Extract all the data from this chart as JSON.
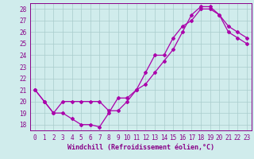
{
  "xlabel": "Windchill (Refroidissement éolien,°C)",
  "xlim": [
    -0.5,
    23.5
  ],
  "ylim": [
    17.5,
    28.5
  ],
  "yticks": [
    18,
    19,
    20,
    21,
    22,
    23,
    24,
    25,
    26,
    27,
    28
  ],
  "xticks": [
    0,
    1,
    2,
    3,
    4,
    5,
    6,
    7,
    8,
    9,
    10,
    11,
    12,
    13,
    14,
    15,
    16,
    17,
    18,
    19,
    20,
    21,
    22,
    23
  ],
  "line1_x": [
    0,
    1,
    2,
    3,
    4,
    5,
    6,
    7,
    8,
    9,
    10,
    11,
    12,
    13,
    14,
    15,
    16,
    17,
    18,
    19,
    20,
    21,
    22,
    23
  ],
  "line1_y": [
    21.0,
    20.0,
    19.0,
    19.0,
    18.5,
    18.0,
    18.0,
    17.8,
    19.0,
    20.3,
    20.3,
    21.0,
    21.5,
    22.5,
    23.5,
    24.5,
    26.0,
    27.5,
    28.2,
    28.2,
    27.5,
    26.5,
    26.0,
    25.5
  ],
  "line2_x": [
    0,
    1,
    2,
    3,
    4,
    5,
    6,
    7,
    8,
    9,
    10,
    11,
    12,
    13,
    14,
    15,
    16,
    17,
    18,
    19,
    20,
    21,
    22,
    23
  ],
  "line2_y": [
    21.0,
    20.0,
    19.0,
    20.0,
    20.0,
    20.0,
    20.0,
    20.0,
    19.2,
    19.2,
    20.0,
    21.0,
    22.5,
    24.0,
    24.0,
    25.5,
    26.5,
    27.0,
    28.0,
    28.0,
    27.5,
    26.0,
    25.5,
    25.0
  ],
  "line_color": "#aa00aa",
  "bg_color": "#d0ecec",
  "grid_color": "#a8cccc",
  "font_color": "#880088",
  "marker": "D",
  "markersize": 2.0,
  "linewidth": 0.9,
  "xlabel_fontsize": 6.0,
  "tick_fontsize": 5.5
}
